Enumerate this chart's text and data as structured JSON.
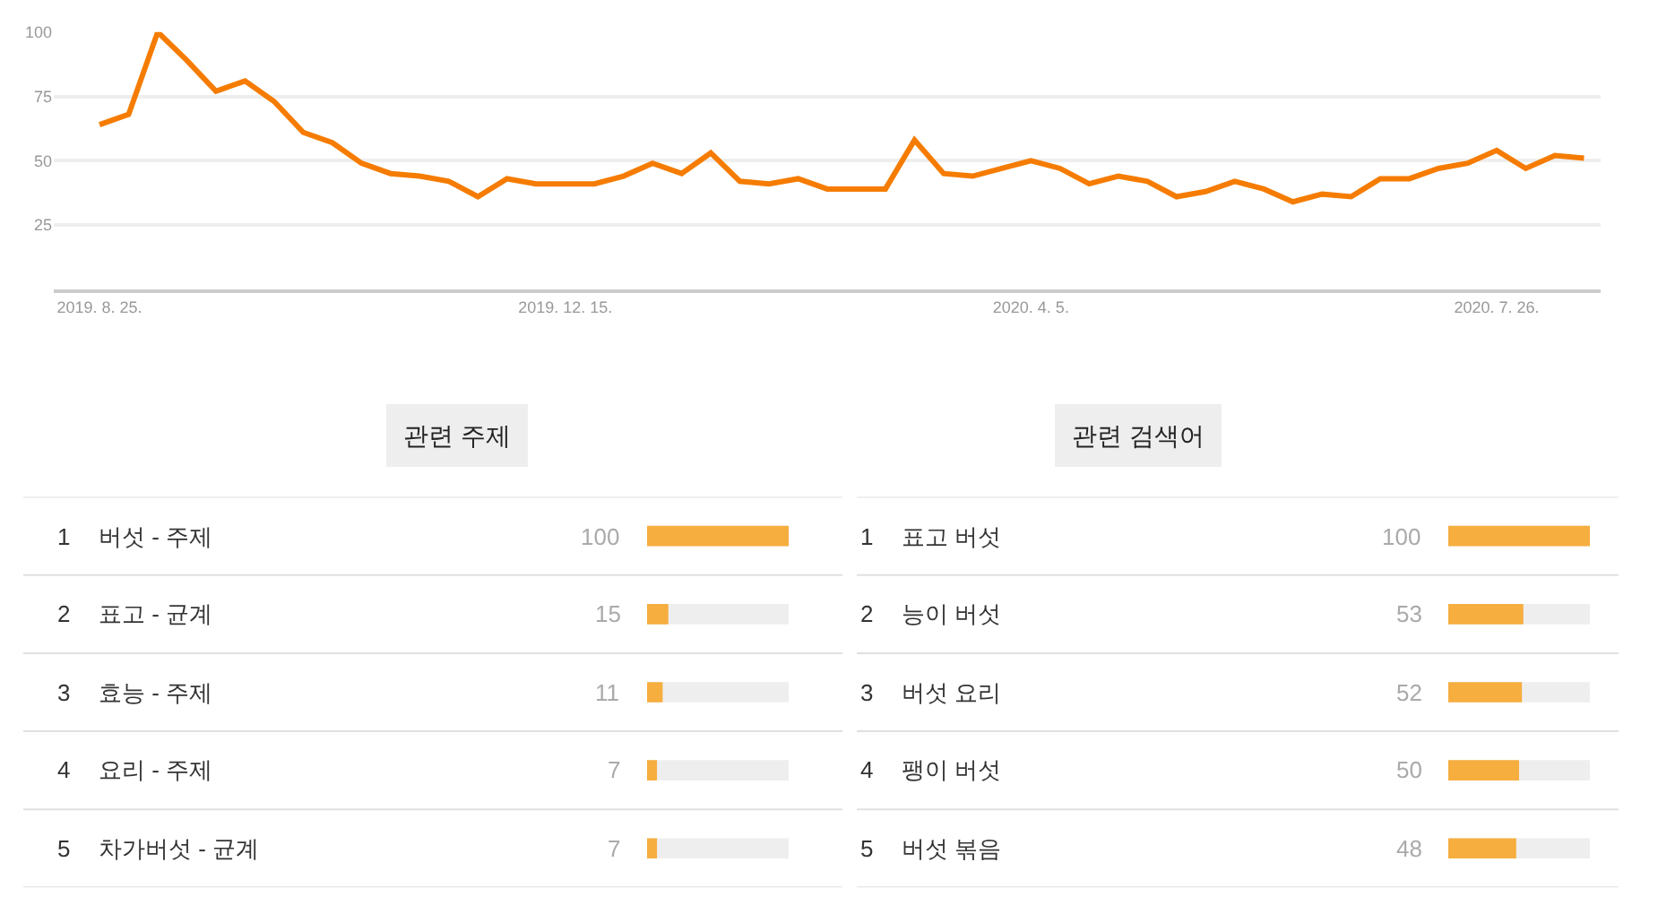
{
  "chart_data": [
    {
      "type": "line",
      "x": [
        "2019-08-25",
        "2019-09-01",
        "2019-09-08",
        "2019-09-15",
        "2019-09-22",
        "2019-09-29",
        "2019-10-06",
        "2019-10-13",
        "2019-10-20",
        "2019-10-27",
        "2019-11-03",
        "2019-11-10",
        "2019-11-17",
        "2019-11-24",
        "2019-12-01",
        "2019-12-08",
        "2019-12-15",
        "2019-12-22",
        "2019-12-29",
        "2020-01-05",
        "2020-01-12",
        "2020-01-19",
        "2020-01-26",
        "2020-02-02",
        "2020-02-09",
        "2020-02-16",
        "2020-02-23",
        "2020-03-01",
        "2020-03-08",
        "2020-03-15",
        "2020-03-22",
        "2020-03-29",
        "2020-04-05",
        "2020-04-12",
        "2020-04-19",
        "2020-04-26",
        "2020-05-03",
        "2020-05-10",
        "2020-05-17",
        "2020-05-24",
        "2020-05-31",
        "2020-06-07",
        "2020-06-14",
        "2020-06-21",
        "2020-06-28",
        "2020-07-05",
        "2020-07-12",
        "2020-07-19",
        "2020-07-26",
        "2020-08-02",
        "2020-08-09",
        "2020-08-16"
      ],
      "series": [
        {
          "color": "#f57c00",
          "values": [
            64,
            68,
            100,
            89,
            77,
            81,
            73,
            61,
            57,
            49,
            45,
            44,
            42,
            36,
            43,
            41,
            41,
            41,
            44,
            49,
            45,
            53,
            42,
            41,
            43,
            39,
            39,
            39,
            58,
            45,
            44,
            47,
            50,
            47,
            41,
            44,
            42,
            36,
            38,
            42,
            39,
            34,
            37,
            36,
            43,
            43,
            47,
            49,
            54,
            47,
            52,
            51
          ]
        }
      ],
      "xlim": [
        "2019-08-14",
        "2020-08-20"
      ],
      "xticks": [
        {
          "value": "2019-08-25",
          "label": "2019. 8. 25."
        },
        {
          "value": "2019-12-15",
          "label": "2019. 12. 15."
        },
        {
          "value": "2020-04-05",
          "label": "2020. 4. 5."
        },
        {
          "value": "2020-07-26",
          "label": "2020. 7. 26."
        }
      ],
      "ylim": [
        0,
        100
      ],
      "yticks": [
        25,
        50,
        75,
        100
      ],
      "grid": "y"
    },
    {
      "type": "bar",
      "orientation": "horizontal",
      "title": "관련 주제",
      "categories": [
        "버섯 - 주제",
        "표고 - 균계",
        "효능 - 주제",
        "요리 - 주제",
        "차가버섯 - 균계"
      ],
      "values": [
        100,
        15,
        11,
        7,
        7
      ],
      "color": "#f6ae3f",
      "xlim": [
        0,
        100
      ],
      "data_labels": true,
      "tick_labels": "y",
      "annotations": [
        "1",
        "2",
        "3",
        "4",
        "5"
      ]
    },
    {
      "type": "bar",
      "orientation": "horizontal",
      "title": "관련 검색어",
      "categories": [
        "표고 버섯",
        "능이 버섯",
        "버섯 요리",
        "팽이 버섯",
        "버섯 볶음"
      ],
      "values": [
        100,
        53,
        52,
        50,
        48
      ],
      "color": "#f6ae3f",
      "xlim": [
        0,
        100
      ],
      "data_labels": true,
      "tick_labels": "y",
      "annotations": [
        "1",
        "2",
        "3",
        "4",
        "5"
      ]
    }
  ]
}
